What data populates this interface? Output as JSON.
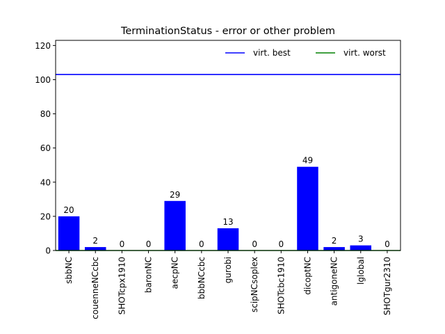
{
  "chart_data": {
    "type": "bar",
    "title": "TerminationStatus - error or other problem",
    "xlabel": "",
    "ylabel": "",
    "ylim": [
      0,
      123
    ],
    "yticks": [
      0,
      20,
      40,
      60,
      80,
      100,
      120
    ],
    "grid": false,
    "legend_position": "top-right",
    "categories": [
      "sbbNC",
      "couenneNCcbc",
      "SHOTcpx1910",
      "baronNC",
      "aecpNC",
      "bbbNCcbc",
      "gurobi",
      "scipNCsoplex",
      "SHOTcbc1910",
      "dicoptNC",
      "antigoneNC",
      "lglobal",
      "SHOTgur2310"
    ],
    "values": [
      20,
      2,
      0,
      0,
      29,
      0,
      13,
      0,
      0,
      49,
      2,
      3,
      0
    ],
    "value_labels": [
      "20",
      "2",
      "0",
      "0",
      "29",
      "0",
      "13",
      "0",
      "0",
      "49",
      "2",
      "3",
      "0"
    ],
    "bar_color": "#0000ff",
    "reference_lines": [
      {
        "name": "virt. best",
        "value": 103,
        "color": "#0000ff"
      },
      {
        "name": "virt. worst",
        "value": 0,
        "color": "#008000"
      }
    ]
  }
}
